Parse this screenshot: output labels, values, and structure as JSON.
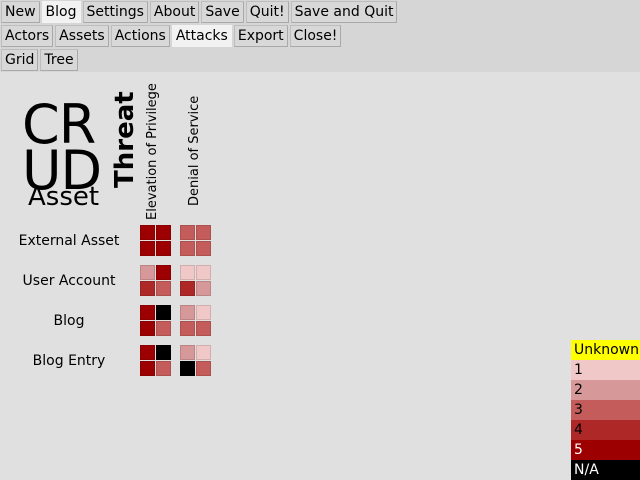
{
  "menu1": [
    "New",
    "Blog",
    "Settings",
    "About",
    "Save",
    "Quit!",
    "Save and Quit"
  ],
  "menu1_active": 1,
  "menu2": [
    "Actors",
    "Assets",
    "Actions",
    "Attacks",
    "Export",
    "Close!"
  ],
  "menu2_active": 3,
  "menu3": [
    "Grid",
    "Tree"
  ],
  "crud": {
    "line1": "CR",
    "line2": "UD",
    "line3": "Asset"
  },
  "threat_label": "Threat",
  "columns": [
    "Elevation of Privilege",
    "Denial of Service"
  ],
  "rows": [
    {
      "label": "External Asset",
      "cells": [
        [
          5,
          5,
          5,
          5
        ],
        [
          3,
          3,
          3,
          3
        ]
      ]
    },
    {
      "label": "User Account",
      "cells": [
        [
          2,
          5,
          4,
          3
        ],
        [
          1,
          1,
          4,
          2
        ]
      ]
    },
    {
      "label": "Blog",
      "cells": [
        [
          5,
          "N/A",
          5,
          3
        ],
        [
          2,
          1,
          3,
          3
        ]
      ]
    },
    {
      "label": "Blog Entry",
      "cells": [
        [
          5,
          "N/A",
          5,
          3
        ],
        [
          2,
          1,
          "N/A",
          3
        ]
      ]
    }
  ],
  "legend": [
    {
      "label": "Unknown",
      "color": "#ffff00",
      "text": "#000000"
    },
    {
      "label": "1",
      "color": "#f0c8c8",
      "text": "#000000"
    },
    {
      "label": "2",
      "color": "#d69898",
      "text": "#000000"
    },
    {
      "label": "3",
      "color": "#c45c5c",
      "text": "#000000"
    },
    {
      "label": "4",
      "color": "#ae2828",
      "text": "#000000"
    },
    {
      "label": "5",
      "color": "#9c0000",
      "text": "#ffffff"
    },
    {
      "label": "N/A",
      "color": "#000000",
      "text": "#ffffff"
    }
  ]
}
